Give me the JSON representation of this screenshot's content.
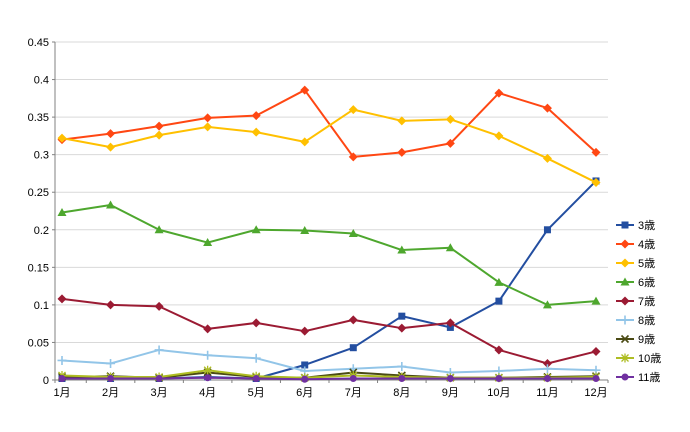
{
  "chart_data": {
    "type": "line",
    "categories": [
      "1月",
      "2月",
      "3月",
      "4月",
      "5月",
      "6月",
      "7月",
      "8月",
      "9月",
      "10月",
      "11月",
      "12月"
    ],
    "ylim": [
      0,
      0.45
    ],
    "ytick_step": 0.05,
    "yticks": [
      "0",
      "0.05",
      "0.1",
      "0.15",
      "0.2",
      "0.25",
      "0.3",
      "0.35",
      "0.4",
      "0.45"
    ],
    "grid": "horizontal",
    "legend_position": "right",
    "colors": {
      "background": "#FFFFFF",
      "gridline": "#D9D9D9",
      "axis": "#808080",
      "text": "#000000"
    },
    "series": [
      {
        "name": "3歳",
        "color": "#234EA0",
        "marker": "square",
        "values": [
          0.002,
          0.002,
          0.002,
          0.004,
          0.002,
          0.02,
          0.043,
          0.085,
          0.07,
          0.105,
          0.2,
          0.265
        ]
      },
      {
        "name": "4歳",
        "color": "#FF4713",
        "marker": "diamond",
        "values": [
          0.32,
          0.328,
          0.338,
          0.349,
          0.352,
          0.386,
          0.297,
          0.303,
          0.315,
          0.382,
          0.362,
          0.303
        ]
      },
      {
        "name": "5歳",
        "color": "#FFC000",
        "marker": "diamond",
        "values": [
          0.322,
          0.31,
          0.326,
          0.337,
          0.33,
          0.317,
          0.36,
          0.345,
          0.347,
          0.325,
          0.295,
          0.263
        ]
      },
      {
        "name": "6歳",
        "color": "#4EA72E",
        "marker": "triangle",
        "values": [
          0.223,
          0.233,
          0.2,
          0.183,
          0.2,
          0.199,
          0.195,
          0.173,
          0.176,
          0.13,
          0.1,
          0.105
        ]
      },
      {
        "name": "7歳",
        "color": "#9B1B33",
        "marker": "diamond",
        "values": [
          0.108,
          0.1,
          0.098,
          0.068,
          0.076,
          0.065,
          0.08,
          0.069,
          0.076,
          0.04,
          0.022,
          0.038
        ]
      },
      {
        "name": "8歳",
        "color": "#92C5E8",
        "marker": "plus",
        "values": [
          0.026,
          0.022,
          0.04,
          0.033,
          0.029,
          0.012,
          0.015,
          0.018,
          0.01,
          0.012,
          0.015,
          0.013
        ]
      },
      {
        "name": "9歳",
        "color": "#4A4A14",
        "marker": "x",
        "values": [
          0.004,
          0.005,
          0.003,
          0.01,
          0.004,
          0.003,
          0.01,
          0.006,
          0.003,
          0.003,
          0.004,
          0.005
        ]
      },
      {
        "name": "10歳",
        "color": "#AEBD23",
        "marker": "asterisk",
        "values": [
          0.006,
          0.004,
          0.004,
          0.013,
          0.005,
          0.003,
          0.006,
          0.004,
          0.003,
          0.003,
          0.003,
          0.004
        ]
      },
      {
        "name": "11歳",
        "color": "#7030A0",
        "marker": "circle",
        "values": [
          0.002,
          0.002,
          0.002,
          0.003,
          0.002,
          0.001,
          0.002,
          0.002,
          0.002,
          0.002,
          0.002,
          0.002
        ]
      }
    ]
  }
}
